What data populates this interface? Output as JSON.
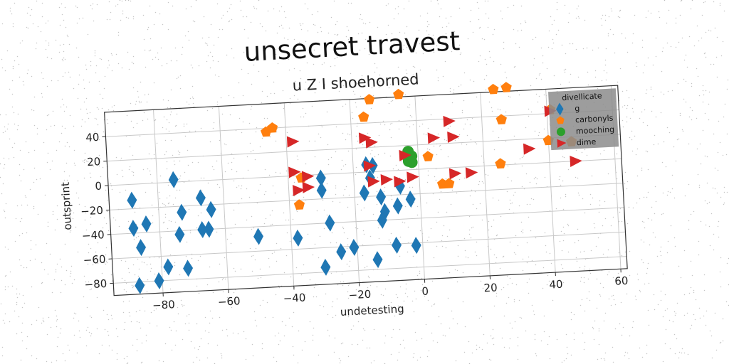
{
  "chart_data": {
    "type": "scatter",
    "title": "unsecret travest",
    "subtitle": "u Z I shoehorned",
    "xlabel": "undetesting",
    "ylabel": "outsprint",
    "xlim": [
      -95,
      62
    ],
    "ylim": [
      -90,
      60
    ],
    "xticks": [
      -80,
      -60,
      -40,
      -20,
      0,
      20,
      40,
      60
    ],
    "yticks": [
      -80,
      -60,
      -40,
      -20,
      0,
      20,
      40
    ],
    "grid": true,
    "legend": {
      "title": "divellicate",
      "placement": "top-right"
    },
    "series": [
      {
        "name": "g",
        "marker": "diamond",
        "color": "#1f77b4",
        "points": [
          [
            -88,
            -13
          ],
          [
            -88,
            -36
          ],
          [
            -84,
            -33
          ],
          [
            -86,
            -52
          ],
          [
            -87,
            -83
          ],
          [
            -81,
            -80
          ],
          [
            -78,
            -69
          ],
          [
            -75,
            2
          ],
          [
            -74,
            -43
          ],
          [
            -73,
            -25
          ],
          [
            -72,
            -71
          ],
          [
            -67,
            -14
          ],
          [
            -67,
            -40
          ],
          [
            -65,
            -40
          ],
          [
            -64,
            -24
          ],
          [
            -50,
            -48
          ],
          [
            -38,
            -51
          ],
          [
            -30,
            -3
          ],
          [
            -30,
            -13
          ],
          [
            -30,
            -76
          ],
          [
            -28,
            -40
          ],
          [
            -25,
            -64
          ],
          [
            -21,
            -61
          ],
          [
            -17,
            -17
          ],
          [
            -16,
            6
          ],
          [
            -15,
            -5
          ],
          [
            -14,
            5
          ],
          [
            -14,
            -72
          ],
          [
            -12,
            -21
          ],
          [
            -12,
            -40
          ],
          [
            -11,
            -33
          ],
          [
            -8,
            -61
          ],
          [
            -6,
            -13
          ],
          [
            -7,
            -29
          ],
          [
            -3,
            -24
          ],
          [
            -2,
            -62
          ]
        ]
      },
      {
        "name": "carbonyls",
        "marker": "pentagon",
        "color": "#ff7f0e",
        "points": [
          [
            -46,
            37
          ],
          [
            -44,
            40
          ],
          [
            -37,
            -24
          ],
          [
            -36,
            -2
          ],
          [
            -16,
            45
          ],
          [
            -14,
            59
          ],
          [
            -5,
            62
          ],
          [
            3,
            10
          ],
          [
            7,
            -13
          ],
          [
            9,
            -13
          ],
          [
            24,
            62
          ],
          [
            28,
            63
          ],
          [
            26,
            37
          ],
          [
            25,
            1
          ],
          [
            41,
            43
          ],
          [
            40,
            18
          ],
          [
            47,
            16
          ]
        ]
      },
      {
        "name": "mooching",
        "marker": "circle",
        "color": "#2ca02c",
        "points": [
          [
            -3,
            12
          ],
          [
            -3,
            8
          ],
          [
            -2,
            11
          ],
          [
            -3,
            15
          ],
          [
            -2,
            6
          ],
          [
            -3,
            7
          ]
        ]
      },
      {
        "name": "dime",
        "marker": "triangle-right",
        "color": "#d62728",
        "points": [
          [
            -38,
            28
          ],
          [
            -38,
            3
          ],
          [
            -37,
            -12
          ],
          [
            -34,
            -10
          ],
          [
            -34,
            -1
          ],
          [
            -16,
            28
          ],
          [
            -14,
            24
          ],
          [
            -15,
            5
          ],
          [
            -14,
            -8
          ],
          [
            -10,
            -7
          ],
          [
            -4,
            12
          ],
          [
            -6,
            -9
          ],
          [
            -2,
            -6
          ],
          [
            5,
            25
          ],
          [
            10,
            38
          ],
          [
            11,
            25
          ],
          [
            11,
            -5
          ],
          [
            16,
            -5
          ],
          [
            34,
            12
          ],
          [
            41,
            42
          ],
          [
            48,
            0
          ]
        ]
      }
    ]
  },
  "colors": {
    "g": "#1f77b4",
    "carbonyls": "#ff7f0e",
    "mooching": "#2ca02c",
    "dime": "#d62728",
    "legend_bg": "#8c8c8c"
  }
}
